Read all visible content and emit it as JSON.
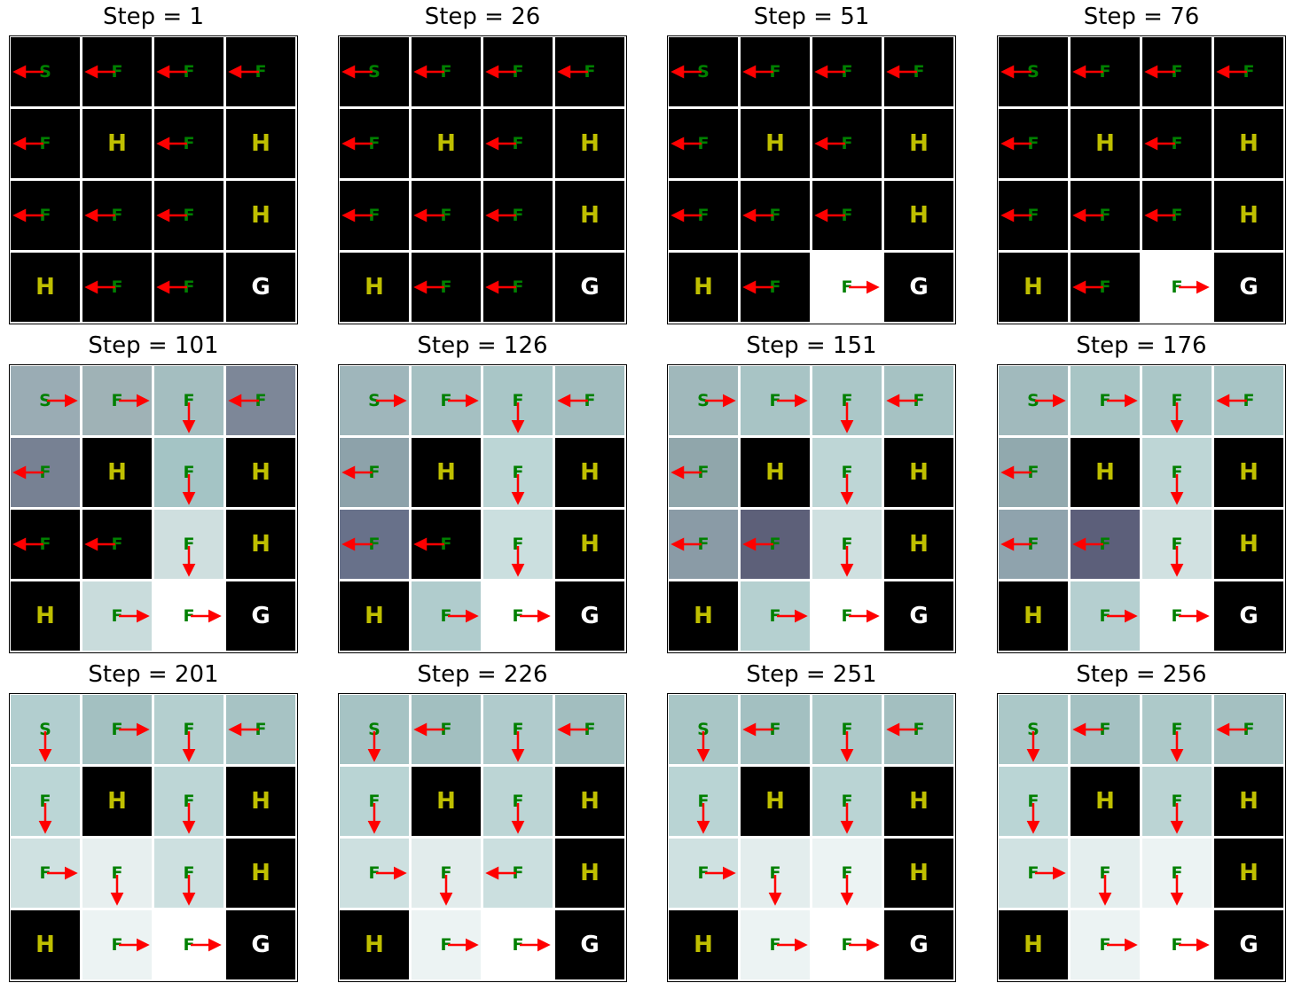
{
  "figure": {
    "title_prefix": "Step = ",
    "arrow_color": "#ff0000",
    "colors": {
      "S": "#008000",
      "F": "#008000",
      "H": "#bfbf00",
      "G": "#ffffff"
    },
    "layout": [
      [
        "S",
        "F",
        "F",
        "F"
      ],
      [
        "F",
        "H",
        "F",
        "H"
      ],
      [
        "F",
        "F",
        "F",
        "H"
      ],
      [
        "H",
        "F",
        "F",
        "G"
      ]
    ],
    "panels": [
      {
        "step": 1,
        "title": "Step = 1",
        "policy": [
          [
            "left",
            "left",
            "left",
            "left"
          ],
          [
            "left",
            null,
            "left",
            null
          ],
          [
            "left",
            "left",
            "left",
            null
          ],
          [
            null,
            "left",
            "left",
            null
          ]
        ],
        "fill": [
          [
            "#000000",
            "#000000",
            "#000000",
            "#000000"
          ],
          [
            "#000000",
            "#000000",
            "#000000",
            "#000000"
          ],
          [
            "#000000",
            "#000000",
            "#000000",
            "#000000"
          ],
          [
            "#000000",
            "#000000",
            "#000000",
            "#000000"
          ]
        ]
      },
      {
        "step": 26,
        "title": "Step = 26",
        "policy": [
          [
            "left",
            "left",
            "left",
            "left"
          ],
          [
            "left",
            null,
            "left",
            null
          ],
          [
            "left",
            "left",
            "left",
            null
          ],
          [
            null,
            "left",
            "left",
            null
          ]
        ],
        "fill": [
          [
            "#000000",
            "#000000",
            "#000000",
            "#000000"
          ],
          [
            "#000000",
            "#000000",
            "#000000",
            "#000000"
          ],
          [
            "#000000",
            "#000000",
            "#000000",
            "#000000"
          ],
          [
            "#000000",
            "#000000",
            "#000000",
            "#000000"
          ]
        ]
      },
      {
        "step": 51,
        "title": "Step = 51",
        "policy": [
          [
            "left",
            "left",
            "left",
            "left"
          ],
          [
            "left",
            null,
            "left",
            null
          ],
          [
            "left",
            "left",
            "left",
            null
          ],
          [
            null,
            "left",
            "right",
            null
          ]
        ],
        "fill": [
          [
            "#000000",
            "#000000",
            "#000000",
            "#000000"
          ],
          [
            "#000000",
            "#000000",
            "#000000",
            "#000000"
          ],
          [
            "#000000",
            "#000000",
            "#000000",
            "#000000"
          ],
          [
            "#000000",
            "#000000",
            "#ffffff",
            "#000000"
          ]
        ]
      },
      {
        "step": 76,
        "title": "Step = 76",
        "policy": [
          [
            "left",
            "left",
            "left",
            "left"
          ],
          [
            "left",
            null,
            "left",
            null
          ],
          [
            "left",
            "left",
            "left",
            null
          ],
          [
            null,
            "left",
            "right",
            null
          ]
        ],
        "fill": [
          [
            "#000000",
            "#000000",
            "#000000",
            "#000000"
          ],
          [
            "#000000",
            "#000000",
            "#000000",
            "#000000"
          ],
          [
            "#000000",
            "#000000",
            "#000000",
            "#000000"
          ],
          [
            "#000000",
            "#000000",
            "#ffffff",
            "#000000"
          ]
        ]
      },
      {
        "step": 101,
        "title": "Step = 101",
        "policy": [
          [
            "right",
            "right",
            "down",
            "left"
          ],
          [
            "left",
            null,
            "down",
            null
          ],
          [
            "left",
            "left",
            "down",
            null
          ],
          [
            null,
            "right",
            "right",
            null
          ]
        ],
        "fill": [
          [
            "#9aacb4",
            "#9fb2b6",
            "#a4bec0",
            "#7d8798"
          ],
          [
            "#778193",
            "#000000",
            "#a4c4c5",
            "#000000"
          ],
          [
            "#000000",
            "#000000",
            "#cfdfdf",
            "#000000"
          ],
          [
            "#000000",
            "#c9dcdc",
            "#ffffff",
            "#000000"
          ]
        ]
      },
      {
        "step": 126,
        "title": "Step = 126",
        "policy": [
          [
            "right",
            "right",
            "down",
            "left"
          ],
          [
            "left",
            null,
            "down",
            null
          ],
          [
            "left",
            "left",
            "down",
            null
          ],
          [
            null,
            "right",
            "right",
            null
          ]
        ],
        "fill": [
          [
            "#9fb6bb",
            "#a5c0c2",
            "#a9c6c7",
            "#a2bdbf"
          ],
          [
            "#8da2aa",
            "#000000",
            "#bcd6d6",
            "#000000"
          ],
          [
            "#68718a",
            "#000000",
            "#cbdfdf",
            "#000000"
          ],
          [
            "#000000",
            "#b0cccd",
            "#ffffff",
            "#000000"
          ]
        ]
      },
      {
        "step": 151,
        "title": "Step = 151",
        "policy": [
          [
            "right",
            "right",
            "down",
            "left"
          ],
          [
            "left",
            null,
            "down",
            null
          ],
          [
            "left",
            "left",
            "down",
            null
          ],
          [
            null,
            "right",
            "right",
            null
          ]
        ],
        "fill": [
          [
            "#a0b8bb",
            "#a8c4c5",
            "#abc7c8",
            "#a6c2c3"
          ],
          [
            "#90a6ab",
            "#000000",
            "#bed6d6",
            "#000000"
          ],
          [
            "#8a9ba6",
            "#5d6079",
            "#cfe0e0",
            "#000000"
          ],
          [
            "#000000",
            "#b5d0d0",
            "#ffffff",
            "#000000"
          ]
        ]
      },
      {
        "step": 176,
        "title": "Step = 176",
        "policy": [
          [
            "right",
            "right",
            "down",
            "left"
          ],
          [
            "left",
            null,
            "down",
            null
          ],
          [
            "left",
            "left",
            "down",
            null
          ],
          [
            null,
            "right",
            "right",
            null
          ]
        ],
        "fill": [
          [
            "#a1babd",
            "#a8c5c5",
            "#abc7c8",
            "#a7c4c5"
          ],
          [
            "#91a9ae",
            "#000000",
            "#bed6d6",
            "#000000"
          ],
          [
            "#8fa3ad",
            "#5c5f7a",
            "#d1e1e1",
            "#000000"
          ],
          [
            "#000000",
            "#b5cfd0",
            "#ffffff",
            "#000000"
          ]
        ]
      },
      {
        "step": 201,
        "title": "Step = 201",
        "policy": [
          [
            "down",
            "right",
            "down",
            "left"
          ],
          [
            "down",
            null,
            "down",
            null
          ],
          [
            "right",
            "down",
            "down",
            null
          ],
          [
            null,
            "right",
            "right",
            null
          ]
        ],
        "fill": [
          [
            "#b2cecf",
            "#a3c0c1",
            "#b4cfcf",
            "#a7c3c4"
          ],
          [
            "#bbd6d6",
            "#000000",
            "#bdd6d6",
            "#000000"
          ],
          [
            "#cfe1e1",
            "#e7efef",
            "#cde0e0",
            "#000000"
          ],
          [
            "#000000",
            "#ecf3f3",
            "#ffffff",
            "#000000"
          ]
        ]
      },
      {
        "step": 226,
        "title": "Step = 226",
        "policy": [
          [
            "down",
            "left",
            "down",
            "left"
          ],
          [
            "down",
            null,
            "down",
            null
          ],
          [
            "right",
            "down",
            "left",
            null
          ],
          [
            null,
            "right",
            "right",
            null
          ]
        ],
        "fill": [
          [
            "#a6c3c4",
            "#a2bfc0",
            "#b0cbcc",
            "#a2bebf"
          ],
          [
            "#b9d4d4",
            "#000000",
            "#bcd5d5",
            "#000000"
          ],
          [
            "#cde0e0",
            "#e2ecec",
            "#cbdfdf",
            "#000000"
          ],
          [
            "#000000",
            "#ecf3f3",
            "#ffffff",
            "#000000"
          ]
        ]
      },
      {
        "step": 251,
        "title": "Step = 251",
        "policy": [
          [
            "down",
            "left",
            "down",
            "left"
          ],
          [
            "down",
            null,
            "down",
            null
          ],
          [
            "right",
            "down",
            "down",
            null
          ],
          [
            null,
            "right",
            "right",
            null
          ]
        ],
        "fill": [
          [
            "#a9c6c6",
            "#a3c0c1",
            "#adc9c9",
            "#a3bfc0"
          ],
          [
            "#b9d4d4",
            "#000000",
            "#bad4d4",
            "#000000"
          ],
          [
            "#cfe1e1",
            "#e3eded",
            "#ecf3f3",
            "#000000"
          ],
          [
            "#000000",
            "#ecf3f3",
            "#ffffff",
            "#000000"
          ]
        ]
      },
      {
        "step": 256,
        "title": "Step = 256",
        "policy": [
          [
            "down",
            "left",
            "down",
            "left"
          ],
          [
            "down",
            null,
            "down",
            null
          ],
          [
            "right",
            "down",
            "down",
            null
          ],
          [
            null,
            "right",
            "right",
            null
          ]
        ],
        "fill": [
          [
            "#abc8c8",
            "#a4c1c2",
            "#adc9c9",
            "#a4c0c1"
          ],
          [
            "#bad5d5",
            "#000000",
            "#bbd4d4",
            "#000000"
          ],
          [
            "#d0e2e2",
            "#e4eeee",
            "#ecf3f3",
            "#000000"
          ],
          [
            "#000000",
            "#ecf3f3",
            "#ffffff",
            "#000000"
          ]
        ]
      }
    ]
  }
}
